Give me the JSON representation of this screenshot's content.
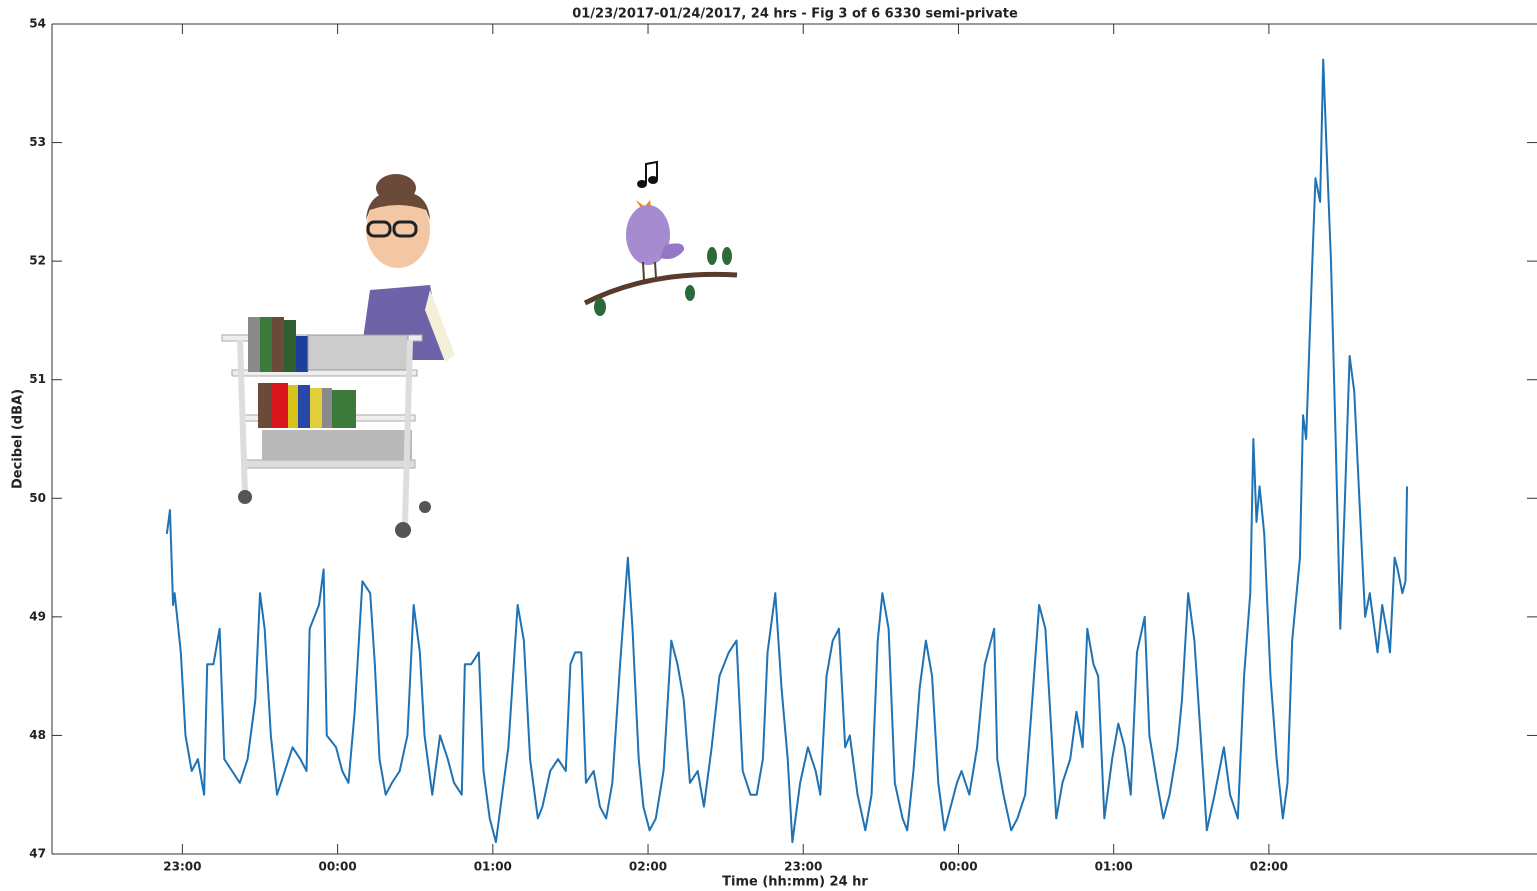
{
  "chart_data": {
    "type": "line",
    "title": "01/23/2017-01/24/2017, 24 hrs - Fig 3 of 6 6330 semi-private",
    "xlabel": "Time (hh:mm) 24 hr",
    "ylabel": "Decibel (dBA)",
    "color": "#1f72b4",
    "grid": false,
    "xlim": [
      -0.84,
      8.65
    ],
    "ylim": [
      47,
      54
    ],
    "yticks": [
      47,
      48,
      49,
      50,
      51,
      52,
      53,
      54
    ],
    "xticks": [
      {
        "value": 0,
        "label": "23:00"
      },
      {
        "value": 1,
        "label": "00:00"
      },
      {
        "value": 2,
        "label": "01:00"
      },
      {
        "value": 3,
        "label": "02:00"
      },
      {
        "value": 4,
        "label": "23:00"
      },
      {
        "value": 5,
        "label": "00:00"
      },
      {
        "value": 6,
        "label": "01:00"
      },
      {
        "value": 7,
        "label": "02:00"
      }
    ],
    "x": [
      -0.1,
      -0.08,
      -0.06,
      -0.05,
      -0.01,
      0.02,
      0.06,
      0.1,
      0.14,
      0.16,
      0.2,
      0.24,
      0.27,
      0.32,
      0.37,
      0.42,
      0.47,
      0.5,
      0.53,
      0.57,
      0.61,
      0.66,
      0.71,
      0.76,
      0.8,
      0.82,
      0.88,
      0.91,
      0.93,
      0.99,
      1.03,
      1.07,
      1.11,
      1.16,
      1.21,
      1.24,
      1.27,
      1.31,
      1.35,
      1.4,
      1.45,
      1.49,
      1.53,
      1.56,
      1.61,
      1.66,
      1.71,
      1.75,
      1.8,
      1.82,
      1.86,
      1.91,
      1.94,
      1.98,
      2.02,
      2.05,
      2.1,
      2.16,
      2.2,
      2.24,
      2.29,
      2.32,
      2.37,
      2.42,
      2.47,
      2.5,
      2.53,
      2.57,
      2.6,
      2.65,
      2.69,
      2.73,
      2.77,
      2.82,
      2.87,
      2.9,
      2.94,
      2.97,
      3.01,
      3.05,
      3.1,
      3.15,
      3.19,
      3.23,
      3.27,
      3.32,
      3.36,
      3.41,
      3.46,
      3.52,
      3.57,
      3.61,
      3.66,
      3.7,
      3.74,
      3.77,
      3.82,
      3.86,
      3.9,
      3.93,
      3.98,
      4.03,
      4.08,
      4.11,
      4.15,
      4.19,
      4.23,
      4.27,
      4.3,
      4.35,
      4.4,
      4.44,
      4.48,
      4.51,
      4.55,
      4.59,
      4.64,
      4.67,
      4.71,
      4.75,
      4.79,
      4.83,
      4.87,
      4.91,
      4.95,
      4.99,
      5.02,
      5.07,
      5.12,
      5.17,
      5.23,
      5.25,
      5.29,
      5.34,
      5.38,
      5.43,
      5.47,
      5.52,
      5.56,
      5.6,
      5.63,
      5.67,
      5.72,
      5.76,
      5.8,
      5.83,
      5.87,
      5.9,
      5.94,
      5.99,
      6.03,
      6.07,
      6.11,
      6.15,
      6.2,
      6.23,
      6.28,
      6.32,
      6.36,
      6.41,
      6.44,
      6.48,
      6.52,
      6.56,
      6.6,
      6.65,
      6.68,
      6.71,
      6.75,
      6.8,
      6.84,
      6.88,
      6.9,
      6.92,
      6.94,
      6.97,
      7.01,
      7.05,
      7.09,
      7.12,
      7.15,
      7.2,
      7.22,
      7.24,
      7.28,
      7.3,
      7.33,
      7.35,
      7.37,
      7.4,
      7.43,
      7.46,
      7.49,
      7.52,
      7.55,
      7.59,
      7.62,
      7.65,
      7.68,
      7.7,
      7.73,
      7.77,
      7.78,
      7.81,
      7.83,
      7.86,
      7.88,
      7.89
    ],
    "values": [
      49.7,
      49.9,
      49.1,
      49.2,
      48.7,
      48.0,
      47.7,
      47.8,
      47.5,
      48.6,
      48.6,
      48.9,
      47.8,
      47.7,
      47.6,
      47.8,
      48.3,
      49.2,
      48.9,
      48.0,
      47.5,
      47.7,
      47.9,
      47.8,
      47.7,
      48.9,
      49.1,
      49.4,
      48.0,
      47.9,
      47.7,
      47.6,
      48.2,
      49.3,
      49.2,
      48.6,
      47.8,
      47.5,
      47.6,
      47.7,
      48.0,
      49.1,
      48.7,
      48.0,
      47.5,
      48.0,
      47.8,
      47.6,
      47.5,
      48.6,
      48.6,
      48.7,
      47.7,
      47.3,
      47.1,
      47.4,
      47.9,
      49.1,
      48.8,
      47.8,
      47.3,
      47.4,
      47.7,
      47.8,
      47.7,
      48.6,
      48.7,
      48.7,
      47.6,
      47.7,
      47.4,
      47.3,
      47.6,
      48.6,
      49.5,
      48.9,
      47.8,
      47.4,
      47.2,
      47.3,
      47.7,
      48.8,
      48.6,
      48.3,
      47.6,
      47.7,
      47.4,
      47.9,
      48.5,
      48.7,
      48.8,
      47.7,
      47.5,
      47.5,
      47.8,
      48.7,
      49.2,
      48.4,
      47.8,
      47.1,
      47.6,
      47.9,
      47.7,
      47.5,
      48.5,
      48.8,
      48.9,
      47.9,
      48.0,
      47.5,
      47.2,
      47.5,
      48.8,
      49.2,
      48.9,
      47.6,
      47.3,
      47.2,
      47.7,
      48.4,
      48.8,
      48.5,
      47.6,
      47.2,
      47.4,
      47.6,
      47.7,
      47.5,
      47.9,
      48.6,
      48.9,
      47.8,
      47.5,
      47.2,
      47.3,
      47.5,
      48.2,
      49.1,
      48.9,
      48.0,
      47.3,
      47.6,
      47.8,
      48.2,
      47.9,
      48.9,
      48.6,
      48.5,
      47.3,
      47.8,
      48.1,
      47.9,
      47.5,
      48.7,
      49.0,
      48.0,
      47.6,
      47.3,
      47.5,
      47.9,
      48.3,
      49.2,
      48.8,
      48.0,
      47.2,
      47.5,
      47.7,
      47.9,
      47.5,
      47.3,
      48.5,
      49.2,
      50.5,
      49.8,
      50.1,
      49.7,
      48.5,
      47.8,
      47.3,
      47.6,
      48.8,
      49.5,
      50.7,
      50.5,
      52.0,
      52.7,
      52.5,
      53.7,
      53.0,
      52.0,
      50.5,
      48.9,
      50.0,
      51.2,
      50.9,
      49.8,
      49.0,
      49.2,
      48.9,
      48.7,
      49.1,
      48.8,
      48.7,
      49.5,
      49.4,
      49.2,
      49.3,
      50.1
    ]
  }
}
